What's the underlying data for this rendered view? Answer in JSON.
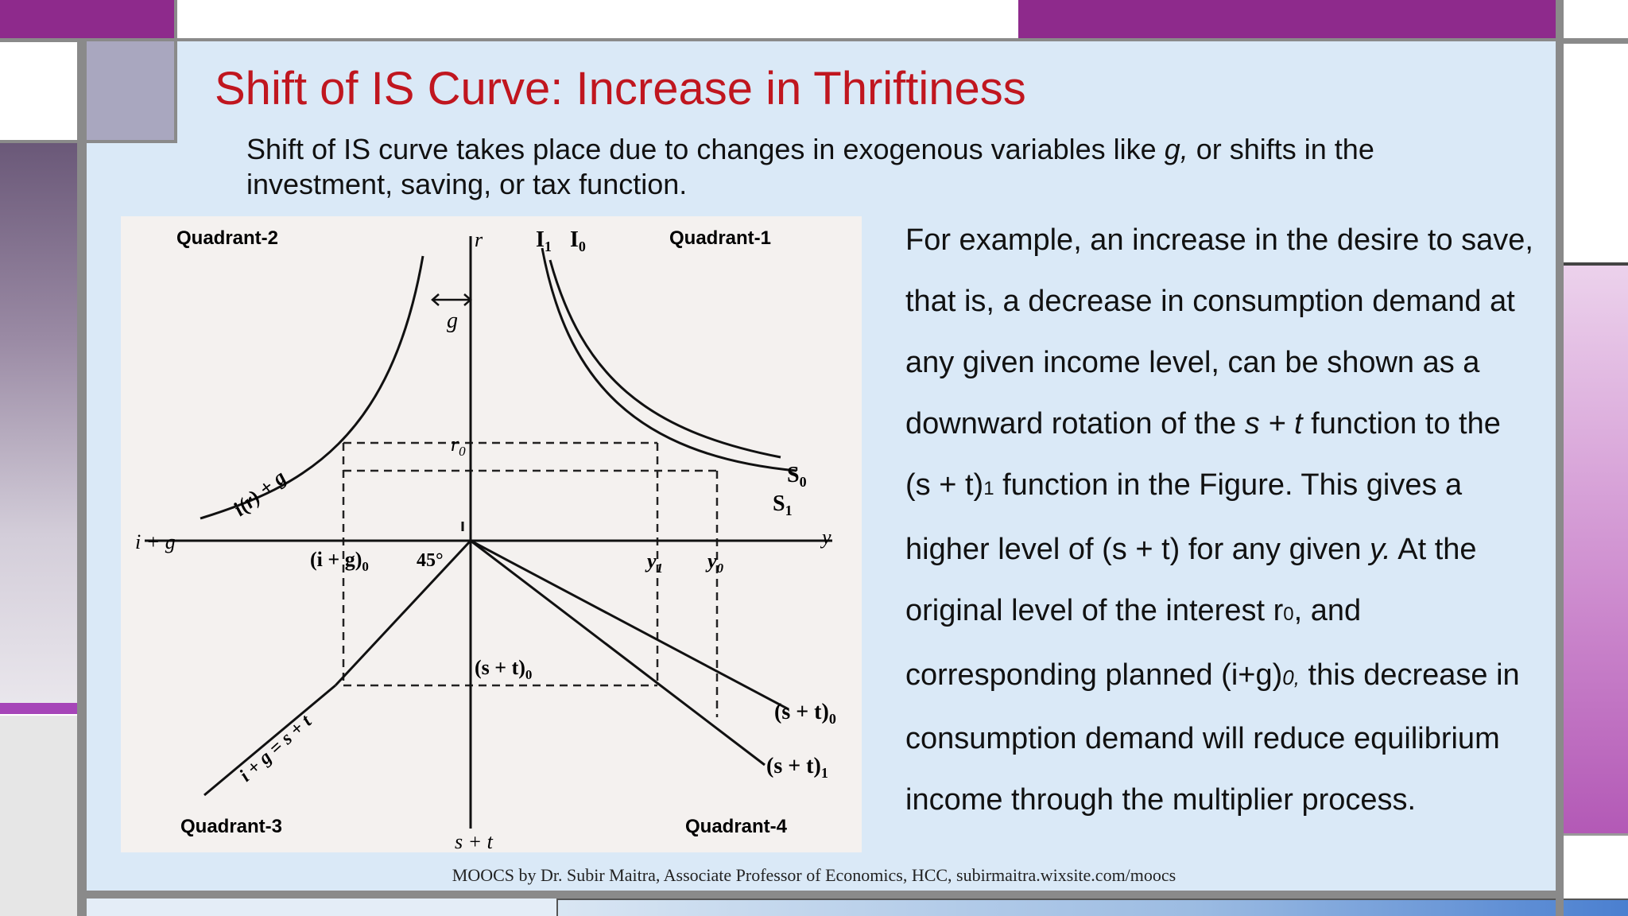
{
  "slide": {
    "title": "Shift of IS Curve: Increase in Thriftiness",
    "intro_1": "Shift of IS curve takes place due to changes in exogenous variables like ",
    "intro_g": "g,",
    "intro_2": " or shifts in the investment, saving, or tax function.",
    "para": [
      "For example, an increase in the desire to save, that is, a decrease in consumption demand at any given income level, can be shown as a downward rotation of the ",
      "s + t",
      " function to the (s + t)",
      "1",
      " function in the Figure. This gives a higher level of (s + t) for any given ",
      "y.",
      " At the original level of the interest r",
      "0",
      ", and corresponding planned (i+g)",
      "0,",
      " this decrease in consumption demand will reduce equilibrium income through the multiplier process."
    ],
    "footer": "MOOCS by Dr. Subir Maitra, Associate Professor of Economics, HCC, subirmaitra.wixsite.com/moocs"
  },
  "figure": {
    "quadrants": [
      "Quadrant-1",
      "Quadrant-2",
      "Quadrant-3",
      "Quadrant-4"
    ],
    "axis_labels": {
      "r": "r",
      "y": "y",
      "i_plus_g": "i + g",
      "s_plus_t": "s + t"
    },
    "labels": {
      "I1": "I",
      "I1_sub": "1",
      "I0": "I",
      "I0_sub": "0",
      "g": "g",
      "r0": "r",
      "r0_sub": "0",
      "S0": "S",
      "S0_sub": "0",
      "S1": "S",
      "S1_sub": "1",
      "ig0": "(i + g)",
      "ig0_sub": "0",
      "deg45": "45°",
      "y1": "y",
      "y1_sub": "1",
      "y0": "y",
      "y0_sub": "0",
      "st0_inner": "(s + t)",
      "st0_inner_sub": "0",
      "st0": "(s + t)",
      "st0_sub": "0",
      "st1": "(s + t)",
      "st1_sub": "1",
      "ir_g": "i(r) + g",
      "identity": "i + g = s + t"
    }
  }
}
